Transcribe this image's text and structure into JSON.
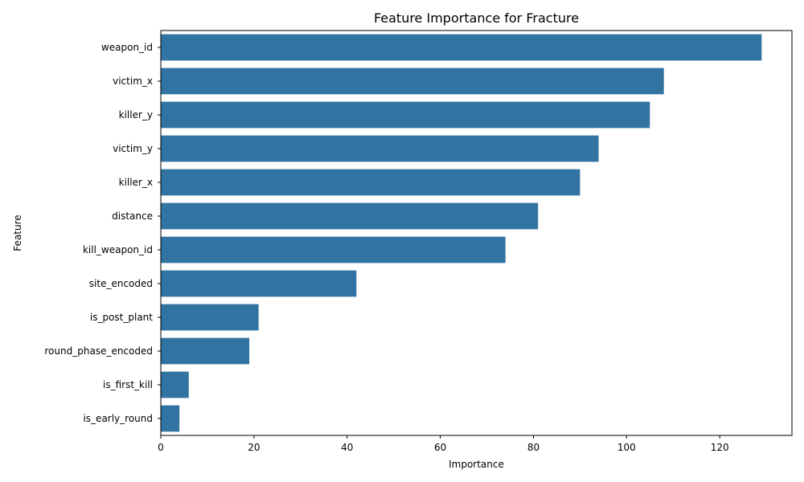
{
  "chart_data": {
    "type": "bar",
    "orientation": "horizontal",
    "title": "Feature Importance for Fracture",
    "xlabel": "Importance",
    "ylabel": "Feature",
    "categories": [
      "weapon_id",
      "victim_x",
      "killer_y",
      "victim_y",
      "killer_x",
      "distance",
      "kill_weapon_id",
      "site_encoded",
      "is_post_plant",
      "round_phase_encoded",
      "is_first_kill",
      "is_early_round"
    ],
    "values": [
      129,
      108,
      105,
      94,
      90,
      81,
      74,
      42,
      21,
      19,
      6,
      4
    ],
    "xlim": [
      0,
      135.5
    ],
    "xticks": [
      "0",
      "20",
      "40",
      "60",
      "80",
      "100",
      "120"
    ],
    "grid": false,
    "bar_color": "#3274a1"
  }
}
